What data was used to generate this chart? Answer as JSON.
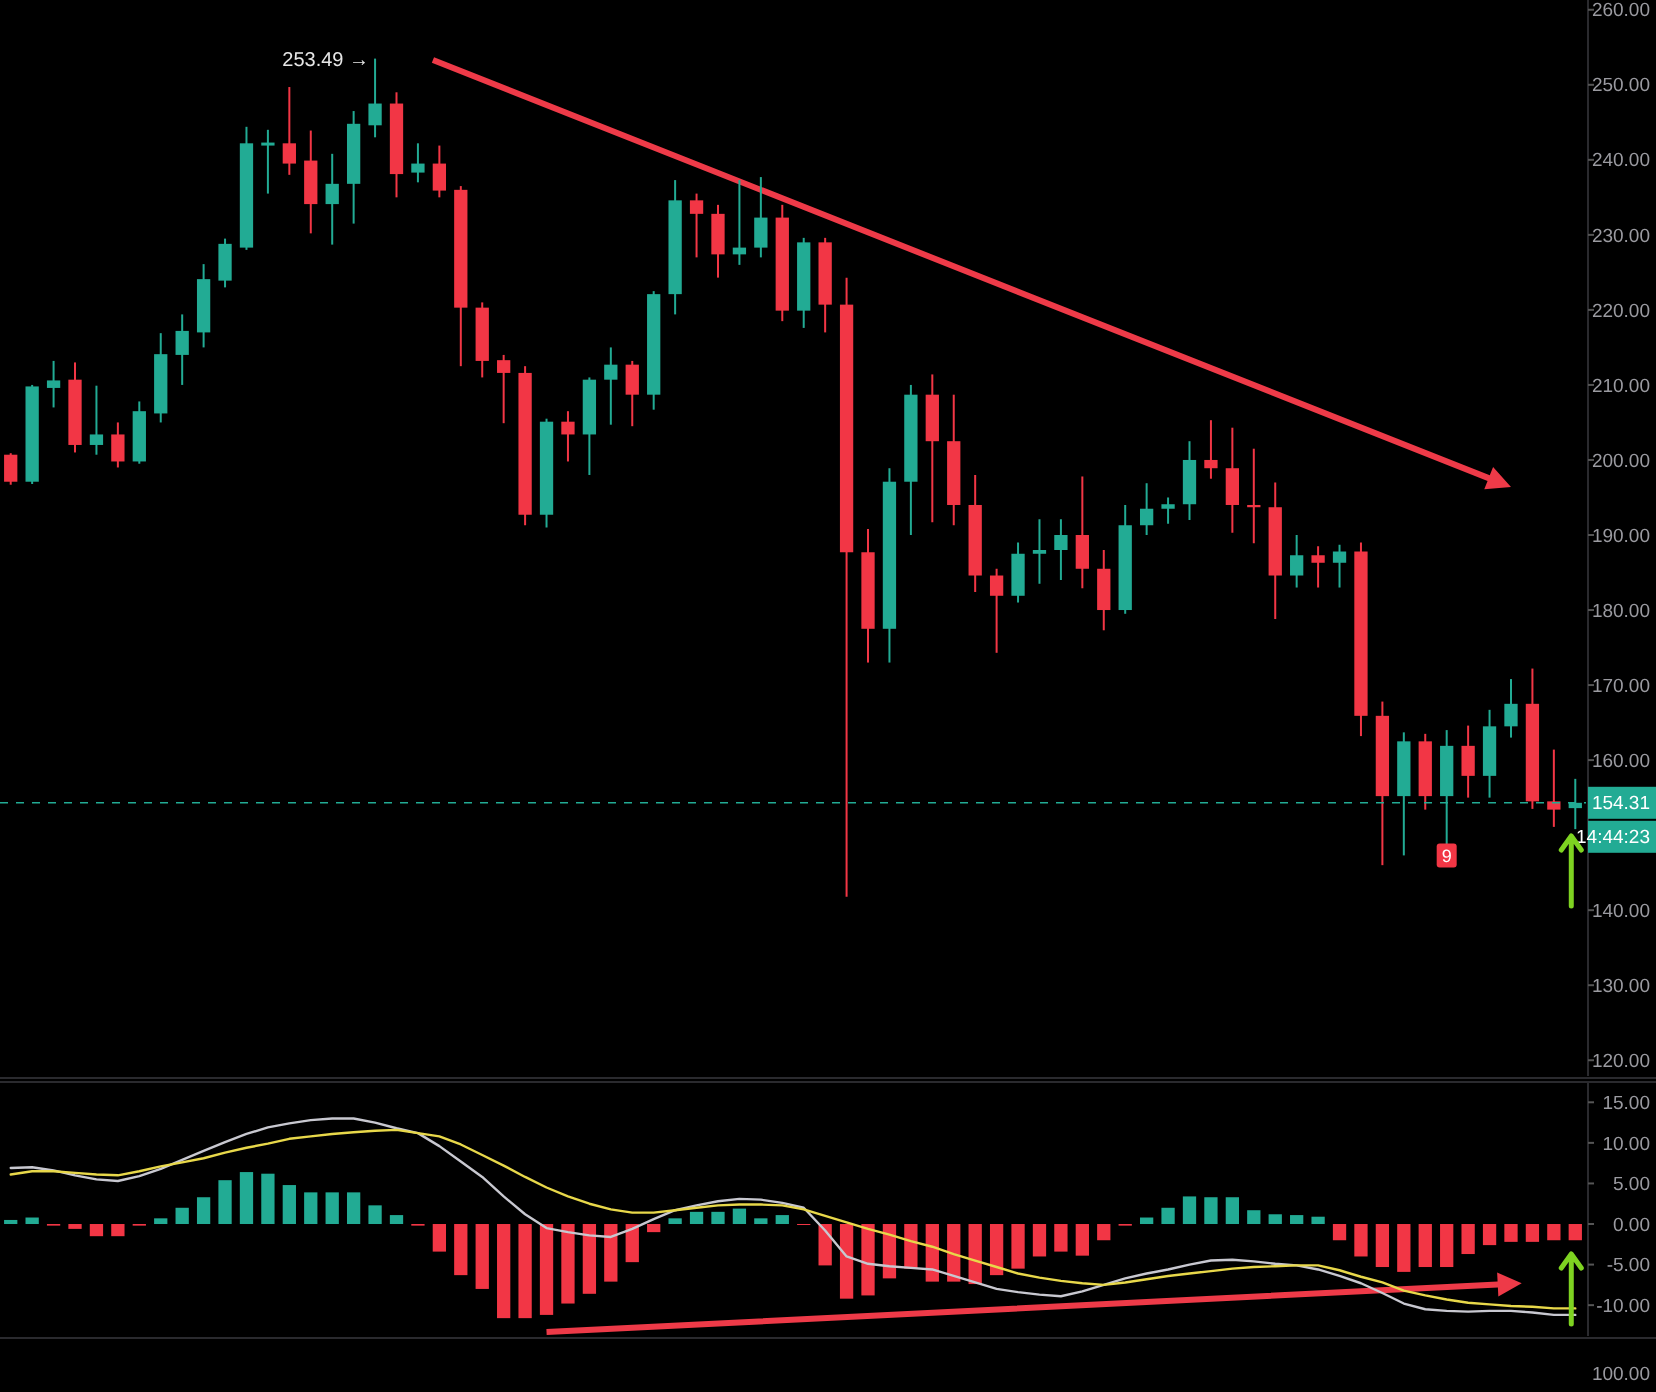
{
  "chart_data": [
    {
      "type": "candlestick",
      "tick_labels": "y",
      "ylim": [
        117.9,
        261.3
      ],
      "yticks": [
        {
          "value": 260,
          "label": "260.00"
        },
        {
          "value": 250,
          "label": "250.00"
        },
        {
          "value": 240,
          "label": "240.00"
        },
        {
          "value": 230,
          "label": "230.00"
        },
        {
          "value": 220,
          "label": "220.00"
        },
        {
          "value": 210,
          "label": "210.00"
        },
        {
          "value": 200,
          "label": "200.00"
        },
        {
          "value": 190,
          "label": "190.00"
        },
        {
          "value": 180,
          "label": "180.00"
        },
        {
          "value": 170,
          "label": "170.00"
        },
        {
          "value": 160,
          "label": "160.00"
        },
        {
          "value": 140,
          "label": "140.00"
        },
        {
          "value": 130,
          "label": "130.00"
        },
        {
          "value": 120,
          "label": "120.00"
        }
      ],
      "categories": [
        null,
        null,
        null,
        null,
        null,
        null,
        null,
        null,
        null,
        null,
        null,
        null,
        null,
        null,
        null,
        null,
        null,
        null,
        null,
        null,
        null,
        null,
        null,
        null,
        null,
        null,
        null,
        null,
        null,
        null,
        null,
        null,
        null,
        null,
        null,
        null,
        null,
        null,
        null,
        null,
        null,
        null,
        null,
        null,
        null,
        null,
        null,
        null,
        null,
        null,
        null,
        null,
        null,
        null,
        null,
        null,
        null,
        null,
        null,
        null,
        null,
        null,
        null,
        null,
        null,
        null,
        null,
        null,
        null,
        null,
        null,
        null,
        null,
        null
      ],
      "ohlc": [
        [
          200.7,
          200.9,
          196.7,
          197.1
        ],
        [
          197.1,
          210.0,
          196.8,
          209.8
        ],
        [
          209.6,
          213.2,
          207.0,
          210.6
        ],
        [
          210.7,
          213.0,
          201.0,
          202.0
        ],
        [
          202.0,
          209.9,
          200.7,
          203.4
        ],
        [
          203.4,
          205.0,
          199.0,
          199.8
        ],
        [
          199.8,
          207.8,
          199.5,
          206.5
        ],
        [
          206.2,
          216.9,
          205.0,
          214.1
        ],
        [
          214.0,
          219.4,
          210.0,
          217.2
        ],
        [
          217.0,
          226.1,
          215.0,
          224.1
        ],
        [
          223.9,
          229.5,
          223.0,
          228.8
        ],
        [
          228.3,
          244.4,
          228.0,
          242.2
        ],
        [
          241.9,
          244.0,
          235.5,
          242.3
        ],
        [
          242.2,
          249.7,
          238.0,
          239.5
        ],
        [
          239.9,
          243.9,
          230.2,
          234.1
        ],
        [
          234.1,
          240.8,
          228.7,
          236.8
        ],
        [
          236.8,
          246.5,
          231.5,
          244.8
        ],
        [
          244.6,
          253.49,
          243.0,
          247.5
        ],
        [
          247.5,
          249.0,
          235.0,
          238.1
        ],
        [
          238.3,
          242.2,
          237.0,
          239.5
        ],
        [
          239.5,
          241.9,
          235.0,
          235.9
        ],
        [
          236.0,
          236.5,
          212.5,
          220.3
        ],
        [
          220.3,
          221.0,
          211.0,
          213.2
        ],
        [
          213.3,
          214.0,
          204.9,
          211.6
        ],
        [
          211.6,
          212.5,
          191.3,
          192.7
        ],
        [
          192.7,
          205.5,
          191.0,
          205.1
        ],
        [
          205.1,
          206.5,
          199.8,
          203.4
        ],
        [
          203.4,
          211.0,
          198.0,
          210.7
        ],
        [
          210.7,
          215.0,
          204.7,
          212.7
        ],
        [
          212.7,
          213.2,
          204.5,
          208.7
        ],
        [
          208.7,
          222.5,
          206.7,
          222.1
        ],
        [
          222.1,
          237.3,
          219.4,
          234.6
        ],
        [
          234.6,
          235.5,
          227.0,
          232.8
        ],
        [
          232.8,
          234.0,
          224.3,
          227.4
        ],
        [
          227.4,
          237.3,
          226.0,
          228.3
        ],
        [
          228.3,
          237.7,
          227.0,
          232.3
        ],
        [
          232.3,
          234.0,
          218.5,
          219.9
        ],
        [
          219.9,
          229.6,
          217.6,
          229.0
        ],
        [
          229.0,
          229.6,
          217.0,
          220.7
        ],
        [
          220.7,
          224.3,
          141.8,
          187.7
        ],
        [
          187.7,
          190.8,
          173.0,
          177.5
        ],
        [
          177.5,
          198.9,
          173.0,
          197.1
        ],
        [
          197.1,
          210.0,
          190.0,
          208.7
        ],
        [
          208.7,
          211.4,
          191.7,
          202.5
        ],
        [
          202.5,
          208.7,
          191.3,
          194.0
        ],
        [
          194.0,
          198.0,
          182.4,
          184.6
        ],
        [
          184.6,
          185.5,
          174.3,
          181.9
        ],
        [
          181.9,
          189.0,
          181.0,
          187.5
        ],
        [
          187.5,
          192.1,
          183.5,
          188.0
        ],
        [
          188.0,
          192.1,
          184.0,
          190.0
        ],
        [
          190.0,
          197.8,
          182.9,
          185.5
        ],
        [
          185.5,
          188.0,
          177.3,
          180.0
        ],
        [
          180.0,
          194.0,
          179.5,
          191.3
        ],
        [
          191.3,
          196.9,
          190.0,
          193.5
        ],
        [
          193.5,
          195.0,
          191.5,
          194.1
        ],
        [
          194.1,
          202.5,
          192.0,
          200.0
        ],
        [
          200.0,
          205.3,
          197.5,
          198.9
        ],
        [
          198.9,
          204.3,
          190.3,
          194.0
        ],
        [
          194.0,
          201.5,
          188.9,
          193.7
        ],
        [
          193.7,
          197.0,
          178.8,
          184.6
        ],
        [
          184.6,
          190.0,
          183.0,
          187.3
        ],
        [
          187.3,
          188.5,
          183.0,
          186.3
        ],
        [
          186.3,
          188.7,
          183.0,
          187.8
        ],
        [
          187.8,
          189.0,
          163.2,
          165.9
        ],
        [
          165.9,
          167.8,
          146.0,
          155.2
        ],
        [
          155.2,
          163.7,
          147.3,
          162.5
        ],
        [
          162.5,
          163.5,
          153.4,
          155.2
        ],
        [
          155.2,
          164.0,
          148.7,
          161.9
        ],
        [
          161.9,
          164.6,
          155.0,
          157.9
        ],
        [
          157.9,
          166.7,
          155.0,
          164.5
        ],
        [
          164.5,
          170.8,
          163.0,
          167.5
        ],
        [
          167.5,
          172.2,
          153.5,
          154.5
        ],
        [
          154.5,
          161.4,
          151.1,
          153.4
        ],
        [
          153.6,
          157.5,
          150.8,
          154.31
        ]
      ],
      "ref_lines": [
        {
          "axis": "y",
          "value": 154.31,
          "label": "154.31",
          "color": "#22ab94",
          "line_style": "dashed"
        }
      ],
      "annotations": [
        "253.49 →",
        {
          "text": "9",
          "y": 147.3
        },
        "14:44:23"
      ]
    },
    {
      "type": "bar",
      "tick_labels": "y",
      "ylim": [
        -13.8,
        17.5
      ],
      "yticks": [
        {
          "value": 15,
          "label": "15.00"
        },
        {
          "value": 10,
          "label": "10.00"
        },
        {
          "value": 5,
          "label": "5.00"
        },
        {
          "value": 0,
          "label": "0.00"
        },
        {
          "value": -5,
          "label": "-5.00"
        },
        {
          "value": -10,
          "label": "-10.00"
        }
      ],
      "categories": [
        null,
        null,
        null,
        null,
        null,
        null,
        null,
        null,
        null,
        null,
        null,
        null,
        null,
        null,
        null,
        null,
        null,
        null,
        null,
        null,
        null,
        null,
        null,
        null,
        null,
        null,
        null,
        null,
        null,
        null,
        null,
        null,
        null,
        null,
        null,
        null,
        null,
        null,
        null,
        null,
        null,
        null,
        null,
        null,
        null,
        null,
        null,
        null,
        null,
        null,
        null,
        null,
        null,
        null,
        null,
        null,
        null,
        null,
        null,
        null,
        null,
        null,
        null,
        null,
        null,
        null,
        null,
        null,
        null,
        null,
        null,
        null,
        null,
        null
      ],
      "series": [
        {
          "type": "bar",
          "values": [
            0.5,
            0.8,
            -0.2,
            -0.6,
            -1.5,
            -1.5,
            -0.2,
            0.7,
            2.0,
            3.3,
            5.4,
            6.4,
            6.2,
            4.8,
            3.9,
            3.9,
            3.9,
            2.3,
            1.1,
            -0.2,
            -3.4,
            -6.3,
            -8.0,
            -11.6,
            -11.6,
            -11.2,
            -9.8,
            -8.6,
            -7.1,
            -4.7,
            -1.0,
            0.7,
            1.5,
            1.5,
            1.9,
            0.7,
            1.1,
            -0.1,
            -5.1,
            -9.2,
            -8.8,
            -6.7,
            -5.5,
            -7.1,
            -7.1,
            -7.4,
            -6.3,
            -5.5,
            -4.0,
            -3.4,
            -3.9,
            -2.0,
            -0.2,
            0.8,
            2.0,
            3.4,
            3.3,
            3.3,
            1.7,
            1.2,
            1.1,
            0.9,
            -2.0,
            -4.0,
            -5.3,
            -5.9,
            -5.3,
            -5.3,
            -3.7,
            -2.6,
            -2.2,
            -2.2,
            -2.0,
            -2.0
          ],
          "colors": [
            "#22ab94",
            "#22ab94",
            "#f23645",
            "#f23645",
            "#f23645",
            "#f23645",
            "#f23645",
            "#22ab94",
            "#22ab94",
            "#22ab94",
            "#22ab94",
            "#22ab94",
            "#22ab94",
            "#22ab94",
            "#22ab94",
            "#22ab94",
            "#22ab94",
            "#22ab94",
            "#22ab94",
            "#f23645",
            "#f23645",
            "#f23645",
            "#f23645",
            "#f23645",
            "#f23645",
            "#f23645",
            "#f23645",
            "#f23645",
            "#f23645",
            "#f23645",
            "#f23645",
            "#22ab94",
            "#22ab94",
            "#22ab94",
            "#22ab94",
            "#22ab94",
            "#22ab94",
            "#f23645",
            "#f23645",
            "#f23645",
            "#f23645",
            "#f23645",
            "#f23645",
            "#f23645",
            "#f23645",
            "#f23645",
            "#f23645",
            "#f23645",
            "#f23645",
            "#f23645",
            "#f23645",
            "#f23645",
            "#f23645",
            "#22ab94",
            "#22ab94",
            "#22ab94",
            "#22ab94",
            "#22ab94",
            "#22ab94",
            "#22ab94",
            "#22ab94",
            "#22ab94",
            "#f23645",
            "#f23645",
            "#f23645",
            "#f23645",
            "#f23645",
            "#f23645",
            "#f23645",
            "#f23645",
            "#f23645",
            "#f23645",
            "#f23645",
            "#f23645"
          ]
        },
        {
          "type": "line",
          "color": "#c8c8d0",
          "values": [
            6.9,
            7.0,
            6.6,
            6.0,
            5.5,
            5.3,
            5.9,
            6.8,
            7.9,
            9.0,
            10.1,
            11.1,
            11.9,
            12.4,
            12.8,
            13.0,
            13.0,
            12.5,
            11.8,
            11.2,
            9.6,
            7.7,
            5.8,
            3.4,
            1.2,
            -0.5,
            -1.0,
            -1.4,
            -1.6,
            -0.6,
            0.6,
            1.7,
            2.3,
            2.8,
            3.1,
            3.0,
            2.6,
            2.0,
            -0.8,
            -4.0,
            -4.9,
            -5.2,
            -5.4,
            -5.6,
            -6.4,
            -7.2,
            -8.0,
            -8.4,
            -8.7,
            -8.9,
            -8.3,
            -7.5,
            -6.7,
            -6.1,
            -5.6,
            -5.0,
            -4.5,
            -4.4,
            -4.6,
            -4.9,
            -5.1,
            -5.6,
            -6.4,
            -7.3,
            -8.5,
            -9.8,
            -10.5,
            -10.7,
            -10.8,
            -10.7,
            -10.7,
            -10.9,
            -11.2,
            -11.2
          ]
        },
        {
          "type": "line",
          "color": "#e8d84a",
          "values": [
            6.1,
            6.5,
            6.5,
            6.3,
            6.1,
            6.0,
            6.5,
            7.1,
            7.6,
            8.1,
            8.8,
            9.4,
            9.9,
            10.5,
            10.8,
            11.1,
            11.3,
            11.5,
            11.6,
            11.2,
            10.8,
            9.8,
            8.5,
            7.2,
            5.8,
            4.5,
            3.4,
            2.5,
            1.8,
            1.4,
            1.4,
            1.7,
            2.0,
            2.3,
            2.4,
            2.4,
            2.3,
            1.8,
            1.0,
            0.2,
            -0.6,
            -1.3,
            -2.1,
            -2.8,
            -3.7,
            -4.5,
            -5.3,
            -6.1,
            -6.6,
            -7.0,
            -7.3,
            -7.5,
            -7.2,
            -6.8,
            -6.4,
            -6.1,
            -5.8,
            -5.5,
            -5.3,
            -5.2,
            -5.1,
            -5.1,
            -5.7,
            -6.5,
            -7.2,
            -8.2,
            -8.8,
            -9.3,
            -9.7,
            -9.9,
            -10.1,
            -10.2,
            -10.4,
            -10.4
          ]
        }
      ],
      "annotations": [
        "100.00"
      ]
    }
  ]
}
